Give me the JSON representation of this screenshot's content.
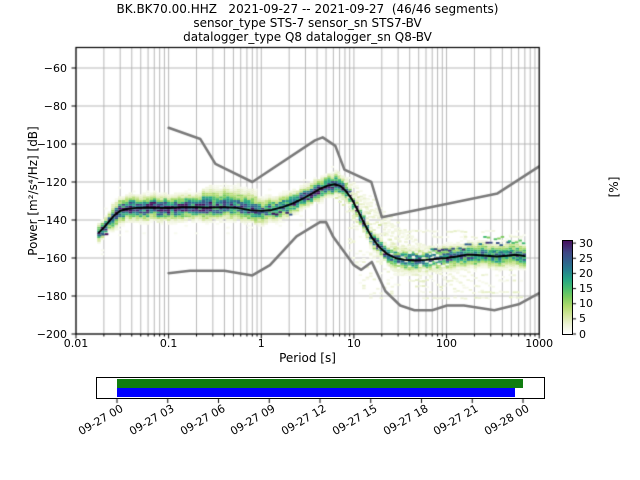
{
  "titles": {
    "line1": "BK.BK70.00.HHZ   2021-09-27 -- 2021-09-27  (46/46 segments)",
    "line2": "sensor_type STS-7 sensor_sn STS7-BV",
    "line3": "datalogger_type Q8 datalogger_sn Q8-BV"
  },
  "chart_data": {
    "type": "heatmap",
    "title": "BK.BK70.00.HHZ   2021-09-27 -- 2021-09-27  (46/46 segments)",
    "subtitle1": "sensor_type STS-7 sensor_sn STS7-BV",
    "subtitle2": "datalogger_type Q8 datalogger_sn Q8-BV",
    "xlabel": "Period [s]",
    "ylabel": "Power [m²/s⁴/Hz] [dB]",
    "x_scale": "log",
    "xlim": [
      0.01,
      1000
    ],
    "ylim": [
      -200,
      -49
    ],
    "x_ticks": [
      0.01,
      0.1,
      1,
      10,
      100,
      1000
    ],
    "x_tick_labels": [
      "0.01",
      "0.1",
      "1",
      "10",
      "100",
      "1000"
    ],
    "y_ticks": [
      -60,
      -80,
      -100,
      -120,
      -140,
      -160,
      -180,
      -200
    ],
    "y_tick_labels": [
      "−60",
      "−80",
      "−100",
      "−120",
      "−140",
      "−160",
      "−180",
      "−200"
    ],
    "grid": true,
    "colorbar": {
      "label": "[%]",
      "ticks": [
        0,
        5,
        10,
        15,
        20,
        25,
        30
      ],
      "tick_labels": [
        "0",
        "5",
        "10",
        "15",
        "20",
        "25",
        "30"
      ],
      "vmax": 30.7,
      "cmap_stops": [
        [
          0,
          "#ffffff"
        ],
        [
          3,
          "#eef3d8"
        ],
        [
          6,
          "#d5e7a2"
        ],
        [
          9,
          "#b2db6f"
        ],
        [
          12,
          "#7dcc5f"
        ],
        [
          15,
          "#48bd6e"
        ],
        [
          18,
          "#25a584"
        ],
        [
          21,
          "#25808e"
        ],
        [
          24,
          "#31618c"
        ],
        [
          27,
          "#3f4684"
        ],
        [
          30.7,
          "#46105e"
        ]
      ]
    },
    "noise_models": {
      "color": "#7a7a7a",
      "nhnm": [
        [
          0.1,
          -91.5
        ],
        [
          0.22,
          -97.4
        ],
        [
          0.32,
          -110.5
        ],
        [
          0.8,
          -120.0
        ],
        [
          3.8,
          -98.1
        ],
        [
          4.6,
          -96.5
        ],
        [
          6.3,
          -101.0
        ],
        [
          7.9,
          -113.5
        ],
        [
          15.4,
          -120.0
        ],
        [
          20,
          -138.5
        ],
        [
          354.8,
          -126.0
        ],
        [
          1000,
          -111.8
        ]
      ],
      "nlnm": [
        [
          0.1,
          -168.0
        ],
        [
          0.17,
          -166.7
        ],
        [
          0.4,
          -166.7
        ],
        [
          0.8,
          -169.2
        ],
        [
          1.24,
          -163.7
        ],
        [
          2.4,
          -148.6
        ],
        [
          4.3,
          -141.1
        ],
        [
          5.0,
          -141.1
        ],
        [
          6.0,
          -149.0
        ],
        [
          10,
          -163.8
        ],
        [
          12,
          -166.2
        ],
        [
          15.6,
          -162.1
        ],
        [
          21.9,
          -177.5
        ],
        [
          31.6,
          -185.0
        ],
        [
          45,
          -187.5
        ],
        [
          70,
          -187.5
        ],
        [
          101,
          -185.0
        ],
        [
          154,
          -185.0
        ],
        [
          328,
          -187.5
        ],
        [
          600,
          -184.4
        ],
        [
          1000,
          -178.5
        ]
      ]
    },
    "mode_line": {
      "color": "#000000",
      "points": [
        [
          0.0177,
          -146.5
        ],
        [
          0.02,
          -144
        ],
        [
          0.023,
          -140.5
        ],
        [
          0.026,
          -137.5
        ],
        [
          0.03,
          -135.2
        ],
        [
          0.035,
          -134.2
        ],
        [
          0.045,
          -133.6
        ],
        [
          0.06,
          -133.4
        ],
        [
          0.08,
          -133.6
        ],
        [
          0.1,
          -133.7
        ],
        [
          0.14,
          -133.2
        ],
        [
          0.2,
          -133.3
        ],
        [
          0.28,
          -133.5
        ],
        [
          0.4,
          -133.2
        ],
        [
          0.55,
          -133.6
        ],
        [
          0.75,
          -134.8
        ],
        [
          1.0,
          -135.2
        ],
        [
          1.3,
          -134.7
        ],
        [
          1.7,
          -133.2
        ],
        [
          2.2,
          -131.2
        ],
        [
          2.8,
          -128.8
        ],
        [
          3.5,
          -126.2
        ],
        [
          4.3,
          -123.6
        ],
        [
          5.2,
          -121.9
        ],
        [
          6.2,
          -121.2
        ],
        [
          7.2,
          -122.2
        ],
        [
          8.2,
          -124.8
        ],
        [
          9.5,
          -129
        ],
        [
          11,
          -135
        ],
        [
          13,
          -142
        ],
        [
          15.5,
          -149
        ],
        [
          19,
          -154.5
        ],
        [
          23,
          -158
        ],
        [
          28,
          -160
        ],
        [
          35,
          -161
        ],
        [
          45,
          -161.3
        ],
        [
          60,
          -161
        ],
        [
          80,
          -160.4
        ],
        [
          100,
          -160
        ],
        [
          130,
          -159.2
        ],
        [
          165,
          -158.2
        ],
        [
          210,
          -158.4
        ],
        [
          270,
          -158.8
        ],
        [
          350,
          -159.2
        ],
        [
          450,
          -158.8
        ],
        [
          560,
          -158.3
        ],
        [
          700,
          -159
        ]
      ]
    },
    "histogram": {
      "bins_per_octave": 8,
      "db_bin_width": 1,
      "period_start": 0.0177,
      "period_end": 730,
      "regions": [
        {
          "t_max": 0.025,
          "sigma": 2.2,
          "peak": 28
        },
        {
          "t_max": 0.3,
          "sigma": 3.2,
          "peak": 28
        },
        {
          "t_max": 2,
          "sigma": 3.2,
          "peak": 23
        },
        {
          "t_max": 8.5,
          "sigma": 2.8,
          "peak": 26
        },
        {
          "t_max": 25,
          "sigma": 2.2,
          "peak": 29
        },
        {
          "t_max": 1000,
          "sigma": 3.2,
          "peak": 22
        }
      ],
      "top_bulge": {
        "t_range": [
          0.22,
          0.9
        ],
        "sigma_factor": 1.5
      },
      "descent_wings": {
        "t_range": [
          8.5,
          32
        ]
      },
      "fan_streaks": [
        [
          8,
          -125,
          28,
          -168,
          4
        ],
        [
          9,
          -126,
          40,
          -172,
          3
        ],
        [
          10,
          -127,
          60,
          -175,
          3
        ],
        [
          12,
          -129,
          90,
          -177,
          2.5
        ],
        [
          14,
          -131,
          140,
          -179,
          2.5
        ],
        [
          16,
          -133,
          210,
          -180,
          2
        ],
        [
          7,
          -127,
          22,
          -162,
          4
        ],
        [
          11,
          -125,
          70,
          -171,
          3
        ],
        [
          13,
          -127,
          110,
          -174,
          2.5
        ],
        [
          18,
          -136,
          260,
          -178,
          2
        ],
        [
          9.5,
          -124,
          35,
          -160,
          5
        ],
        [
          20,
          -141,
          330,
          -176,
          2
        ],
        [
          6.5,
          -128,
          18,
          -155,
          4
        ],
        [
          15,
          -128,
          160,
          -176,
          2.5
        ],
        [
          7.5,
          -117,
          24,
          -149,
          3
        ],
        [
          8.5,
          -119,
          33,
          -153,
          2.5
        ],
        [
          10,
          -121,
          45,
          -156,
          2
        ],
        [
          6.8,
          -115,
          15,
          -138,
          3
        ]
      ],
      "sparse_rows": {
        "t_range": [
          26,
          680
        ],
        "rows": [
          -146,
          -149,
          -166,
          -169,
          -172,
          -175,
          -178,
          -181
        ],
        "above_count": 2
      },
      "dense_streaks": [
        [
          0.018,
          0.023,
          -147.5,
          27
        ],
        [
          0.8,
          2.2,
          -136.5,
          29
        ],
        [
          70,
          160,
          -155.5,
          24
        ],
        [
          150,
          480,
          -152.5,
          25
        ],
        [
          260,
          430,
          -149.5,
          13
        ],
        [
          40,
          110,
          -158.5,
          21
        ],
        [
          300,
          640,
          -156.5,
          20
        ],
        [
          480,
          700,
          -151.5,
          15
        ]
      ]
    }
  },
  "timeline": {
    "tick_labels": [
      "09-27 00",
      "09-27 03",
      "09-27 06",
      "09-27 09",
      "09-27 12",
      "09-27 15",
      "09-27 18",
      "09-27 21",
      "09-28 00"
    ],
    "hours_total": 24,
    "green_bar_hours": [
      0,
      24
    ],
    "blue_bar_hours": [
      0,
      23.5
    ],
    "green_color": "#0f7d0f",
    "blue_color": "#0000ff"
  }
}
